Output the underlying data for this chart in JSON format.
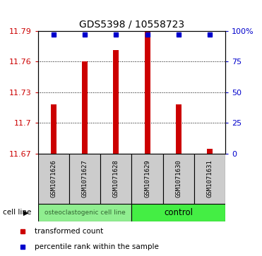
{
  "title": "GDS5398 / 10558723",
  "samples": [
    "GSM1071626",
    "GSM1071627",
    "GSM1071628",
    "GSM1071629",
    "GSM1071630",
    "GSM1071631"
  ],
  "bar_values": [
    11.718,
    11.76,
    11.771,
    11.79,
    11.718,
    11.675
  ],
  "bar_bottom": 11.67,
  "percentile_values": [
    97,
    97,
    97,
    97,
    97,
    97
  ],
  "ylim_left": [
    11.67,
    11.79
  ],
  "ylim_right": [
    0,
    100
  ],
  "yticks_left": [
    11.67,
    11.7,
    11.73,
    11.76,
    11.79
  ],
  "yticks_right": [
    0,
    25,
    50,
    75,
    100
  ],
  "ytick_labels_right": [
    "0",
    "25",
    "50",
    "75",
    "100%"
  ],
  "bar_color": "#cc0000",
  "dot_color": "#0000cc",
  "groups": [
    {
      "label": "osteoclastogenic cell line",
      "start": 0,
      "end": 3,
      "color": "#90ee90",
      "text_color": "#336633",
      "fontsize": 6.5
    },
    {
      "label": "control",
      "start": 3,
      "end": 6,
      "color": "#44ee44",
      "text_color": "#000000",
      "fontsize": 8.5
    }
  ],
  "group_row_label": "cell line",
  "legend_bar_label": "transformed count",
  "legend_dot_label": "percentile rank within the sample",
  "title_fontsize": 10,
  "tick_fontsize": 8,
  "bar_width": 0.18,
  "sample_box_color": "#cccccc",
  "left_tick_color": "#cc0000",
  "right_tick_color": "#0000cc"
}
